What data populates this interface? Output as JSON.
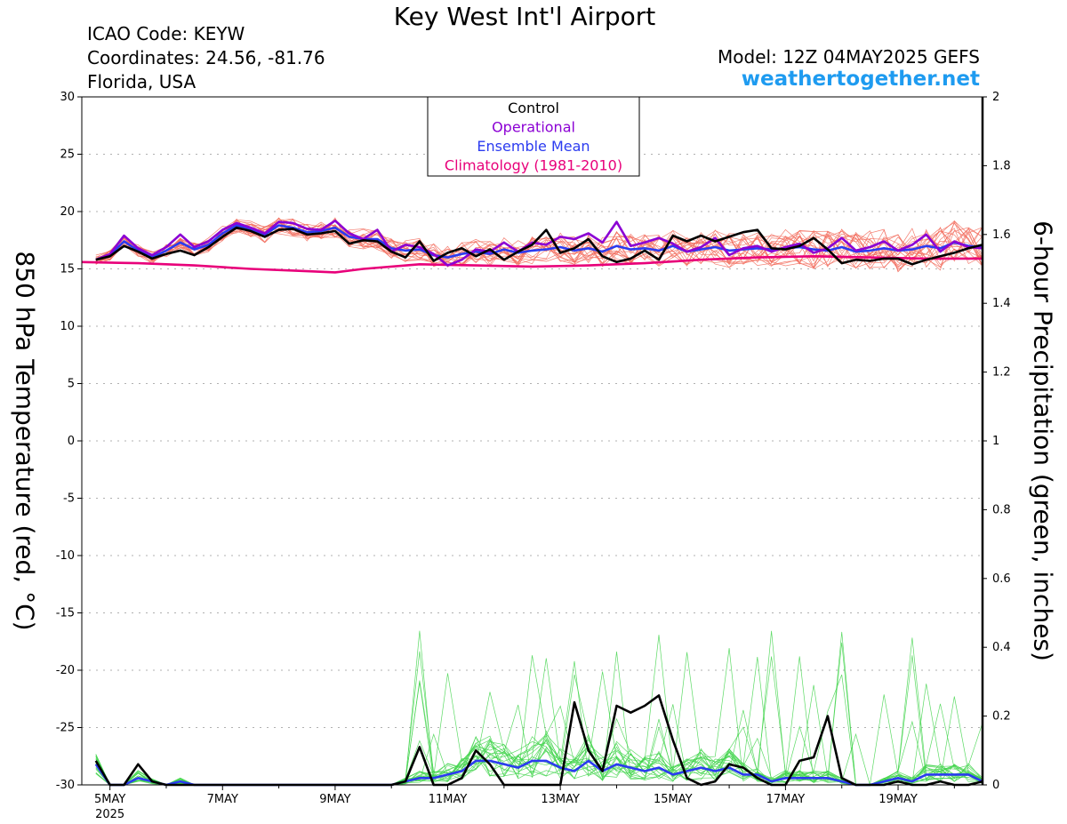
{
  "header": {
    "title": "Key West Int'l Airport",
    "icao": "ICAO Code: KEYW",
    "coordinates": "Coordinates: 24.56, -81.76",
    "location": "Florida, USA",
    "model": "Model: 12Z 04MAY2025 GEFS",
    "site": "weathertogether.net"
  },
  "chart_data": {
    "type": "line",
    "ylabel_left": "850 hPa Temperature (red, °C)",
    "ylabel_right": "6-hour Precipitation (green, inches)",
    "ylim_left": [
      -30,
      30
    ],
    "ylim_right": [
      0,
      2
    ],
    "yticks_left": [
      "30",
      "25",
      "20",
      "15",
      "10",
      "5",
      "0",
      "-5",
      "-10",
      "-15",
      "-20",
      "-25",
      "-30"
    ],
    "yticks_right": [
      "2",
      "1.8",
      "1.6",
      "1.4",
      "1.2",
      "1",
      "0.8",
      "0.6",
      "0.4",
      "0.2",
      "0"
    ],
    "x_range_days": [
      4.5,
      20.5
    ],
    "xticks": [
      {
        "day": 5,
        "label": "5MAY",
        "sublabel": "2025"
      },
      {
        "day": 7,
        "label": "7MAY"
      },
      {
        "day": 9,
        "label": "9MAY"
      },
      {
        "day": 11,
        "label": "11MAY"
      },
      {
        "day": 13,
        "label": "13MAY"
      },
      {
        "day": 15,
        "label": "15MAY"
      },
      {
        "day": 17,
        "label": "17MAY"
      },
      {
        "day": 19,
        "label": "19MAY"
      }
    ],
    "grid": true,
    "legend": {
      "placement": "top-center",
      "entries": [
        {
          "label": "Control",
          "color": "#000000"
        },
        {
          "label": "Operational",
          "color": "#8b00d4"
        },
        {
          "label": "Ensemble Mean",
          "color": "#2b3bf0"
        },
        {
          "label": "Climatology (1981-2010)",
          "color": "#e8007a"
        }
      ]
    },
    "colors": {
      "control": "#000000",
      "operational": "#8b00d4",
      "mean": "#2b3bf0",
      "climatology": "#e8007a",
      "members_temp": "#f26a5a",
      "members_precip": "#3fd44a"
    },
    "series": [
      {
        "name": "Control",
        "axis": "left",
        "x": [
          4.75,
          5.0,
          5.25,
          5.5,
          5.75,
          6.0,
          6.25,
          6.5,
          6.75,
          7.0,
          7.25,
          7.5,
          7.75,
          8.0,
          8.25,
          8.5,
          8.75,
          9.0,
          9.25,
          9.5,
          9.75,
          10.0,
          10.25,
          10.5,
          10.75,
          11.0,
          11.25,
          11.5,
          11.75,
          12.0,
          12.25,
          12.5,
          12.75,
          13.0,
          13.25,
          13.5,
          13.75,
          14.0,
          14.25,
          14.5,
          14.75,
          15.0,
          15.25,
          15.5,
          15.75,
          16.0,
          16.25,
          16.5,
          16.75,
          17.0,
          17.25,
          17.5,
          17.75,
          18.0,
          18.25,
          18.5,
          18.75,
          19.0,
          19.25,
          19.5,
          19.75,
          20.0,
          20.25,
          20.5
        ],
        "values": [
          15.8,
          16.1,
          17.0,
          16.5,
          15.9,
          16.3,
          16.6,
          16.2,
          16.9,
          17.8,
          18.6,
          18.3,
          17.8,
          18.4,
          18.5,
          18.0,
          18.1,
          18.3,
          17.2,
          17.5,
          17.4,
          16.5,
          16.0,
          17.4,
          15.7,
          16.4,
          16.8,
          16.1,
          16.7,
          15.8,
          16.5,
          17.1,
          18.4,
          16.4,
          16.8,
          17.6,
          16.1,
          15.6,
          15.9,
          16.6,
          15.8,
          17.9,
          17.4,
          17.9,
          17.4,
          17.8,
          18.2,
          18.4,
          16.8,
          16.7,
          17.0,
          17.7,
          16.7,
          15.5,
          15.8,
          15.7,
          15.9,
          15.9,
          15.4,
          15.8,
          16.1,
          16.4,
          16.8,
          17.1
        ]
      },
      {
        "name": "Operational",
        "axis": "left",
        "x": [
          4.75,
          5.0,
          5.25,
          5.5,
          5.75,
          6.0,
          6.25,
          6.5,
          6.75,
          7.0,
          7.25,
          7.5,
          7.75,
          8.0,
          8.25,
          8.5,
          8.75,
          9.0,
          9.25,
          9.5,
          9.75,
          10.0,
          10.25,
          10.5,
          10.75,
          11.0,
          11.25,
          11.5,
          11.75,
          12.0,
          12.25,
          12.5,
          12.75,
          13.0,
          13.25,
          13.5,
          13.75,
          14.0,
          14.25,
          14.5,
          14.75,
          15.0,
          15.25,
          15.5,
          15.75,
          16.0,
          16.25,
          16.5,
          16.75,
          17.0,
          17.25,
          17.5,
          17.75,
          18.0,
          18.25,
          18.5,
          18.75,
          19.0,
          19.25,
          19.5,
          19.75,
          20.0,
          20.25,
          20.5
        ],
        "values": [
          15.8,
          16.3,
          17.9,
          16.8,
          16.2,
          16.9,
          18.0,
          16.9,
          17.4,
          18.4,
          19.0,
          18.6,
          18.1,
          19.1,
          19.0,
          18.5,
          18.4,
          19.2,
          18.1,
          17.6,
          18.4,
          16.5,
          17.1,
          16.9,
          16.3,
          15.3,
          15.8,
          16.7,
          16.5,
          17.3,
          16.5,
          17.3,
          17.1,
          17.8,
          17.6,
          18.1,
          17.3,
          19.1,
          17.0,
          17.3,
          17.7,
          17.2,
          16.5,
          16.9,
          17.7,
          16.2,
          16.8,
          17.0,
          16.5,
          16.9,
          17.2,
          16.4,
          16.8,
          17.7,
          16.6,
          16.9,
          17.4,
          16.6,
          17.1,
          18.0,
          16.5,
          17.4,
          16.9,
          16.8
        ]
      },
      {
        "name": "Ensemble Mean",
        "axis": "left",
        "x": [
          4.75,
          5.0,
          5.25,
          5.5,
          5.75,
          6.0,
          6.25,
          6.5,
          6.75,
          7.0,
          7.25,
          7.5,
          7.75,
          8.0,
          8.25,
          8.5,
          8.75,
          9.0,
          9.25,
          9.5,
          9.75,
          10.0,
          10.25,
          10.5,
          10.75,
          11.0,
          11.25,
          11.5,
          11.75,
          12.0,
          12.25,
          12.5,
          12.75,
          13.0,
          13.25,
          13.5,
          13.75,
          14.0,
          14.25,
          14.5,
          14.75,
          15.0,
          15.25,
          15.5,
          15.75,
          16.0,
          16.25,
          16.5,
          16.75,
          17.0,
          17.25,
          17.5,
          17.75,
          18.0,
          18.25,
          18.5,
          18.75,
          19.0,
          19.25,
          19.5,
          19.75,
          20.0,
          20.25,
          20.5
        ],
        "values": [
          15.8,
          16.2,
          17.4,
          16.6,
          16.0,
          16.6,
          17.3,
          16.7,
          17.1,
          18.1,
          18.8,
          18.5,
          18.0,
          18.8,
          18.6,
          18.2,
          18.3,
          18.6,
          17.8,
          17.6,
          17.6,
          16.8,
          16.6,
          16.7,
          16.2,
          16.0,
          16.3,
          16.5,
          16.3,
          16.7,
          16.4,
          16.6,
          16.7,
          16.9,
          16.6,
          16.8,
          16.5,
          17.0,
          16.7,
          16.8,
          16.6,
          17.0,
          16.5,
          16.7,
          16.9,
          16.6,
          16.7,
          16.8,
          16.7,
          16.8,
          16.9,
          16.7,
          16.6,
          16.9,
          16.5,
          16.6,
          16.8,
          16.6,
          16.7,
          17.0,
          16.8,
          17.3,
          17.0,
          16.9
        ]
      },
      {
        "name": "Climatology (1981-2010)",
        "axis": "left",
        "x": [
          4.5,
          5.5,
          6.5,
          7.5,
          8.5,
          9.0,
          9.5,
          10.5,
          11.5,
          12.5,
          13.5,
          14.5,
          15.5,
          16.5,
          17.5,
          18.5,
          19.5,
          20.5
        ],
        "values": [
          15.6,
          15.5,
          15.3,
          15.0,
          14.8,
          14.7,
          15.0,
          15.4,
          15.3,
          15.2,
          15.3,
          15.5,
          15.8,
          16.0,
          16.1,
          16.0,
          15.9,
          15.9
        ]
      },
      {
        "name": "Control",
        "axis": "right",
        "x": [
          4.75,
          5.0,
          5.25,
          5.5,
          5.75,
          6.0,
          6.25,
          6.5,
          6.75,
          7.0,
          7.25,
          7.5,
          7.75,
          8.0,
          8.25,
          8.5,
          8.75,
          9.0,
          9.25,
          9.5,
          9.75,
          10.0,
          10.25,
          10.5,
          10.75,
          11.0,
          11.25,
          11.5,
          11.75,
          12.0,
          12.25,
          12.5,
          12.75,
          13.0,
          13.25,
          13.5,
          13.75,
          14.0,
          14.25,
          14.5,
          14.75,
          15.0,
          15.25,
          15.5,
          15.75,
          16.0,
          16.25,
          16.5,
          16.75,
          17.0,
          17.25,
          17.5,
          17.75,
          18.0,
          18.25,
          18.5,
          18.75,
          19.0,
          19.25,
          19.5,
          19.75,
          20.0,
          20.25,
          20.5
        ],
        "values": [
          0.07,
          0.0,
          0.0,
          0.06,
          0.01,
          0.0,
          0.0,
          0.0,
          0.0,
          0.0,
          0.0,
          0.0,
          0.0,
          0.0,
          0.0,
          0.0,
          0.0,
          0.0,
          0.0,
          0.0,
          0.0,
          0.0,
          0.01,
          0.11,
          0.0,
          0.0,
          0.02,
          0.1,
          0.06,
          0.0,
          0.0,
          0.0,
          0.0,
          0.0,
          0.24,
          0.1,
          0.04,
          0.23,
          0.21,
          0.23,
          0.26,
          0.13,
          0.02,
          0.0,
          0.01,
          0.06,
          0.05,
          0.02,
          0.0,
          0.0,
          0.07,
          0.08,
          0.2,
          0.02,
          0.0,
          0.0,
          0.0,
          0.01,
          0.0,
          0.0,
          0.01,
          0.0,
          0.0,
          0.01
        ]
      },
      {
        "name": "Ensemble Mean",
        "axis": "right",
        "x": [
          4.75,
          5.0,
          5.25,
          5.5,
          5.75,
          6.0,
          6.25,
          6.5,
          6.75,
          7.0,
          7.25,
          7.5,
          7.75,
          8.0,
          8.25,
          8.5,
          8.75,
          9.0,
          9.25,
          9.5,
          9.75,
          10.0,
          10.25,
          10.5,
          10.75,
          11.0,
          11.25,
          11.5,
          11.75,
          12.0,
          12.25,
          12.5,
          12.75,
          13.0,
          13.25,
          13.5,
          13.75,
          14.0,
          14.25,
          14.5,
          14.75,
          15.0,
          15.25,
          15.5,
          15.75,
          16.0,
          16.25,
          16.5,
          16.75,
          17.0,
          17.25,
          17.5,
          17.75,
          18.0,
          18.25,
          18.5,
          18.75,
          19.0,
          19.25,
          19.5,
          19.75,
          20.0,
          20.25,
          20.5
        ],
        "values": [
          0.06,
          0.0,
          0.0,
          0.02,
          0.01,
          0.0,
          0.01,
          0.0,
          0.0,
          0.0,
          0.0,
          0.0,
          0.0,
          0.0,
          0.0,
          0.0,
          0.0,
          0.0,
          0.0,
          0.0,
          0.0,
          0.0,
          0.01,
          0.02,
          0.02,
          0.03,
          0.04,
          0.07,
          0.07,
          0.06,
          0.05,
          0.07,
          0.07,
          0.05,
          0.04,
          0.07,
          0.04,
          0.06,
          0.05,
          0.04,
          0.05,
          0.03,
          0.04,
          0.05,
          0.04,
          0.05,
          0.03,
          0.03,
          0.01,
          0.02,
          0.02,
          0.02,
          0.02,
          0.01,
          0.0,
          0.0,
          0.01,
          0.02,
          0.01,
          0.03,
          0.03,
          0.03,
          0.03,
          0.01
        ]
      }
    ]
  }
}
